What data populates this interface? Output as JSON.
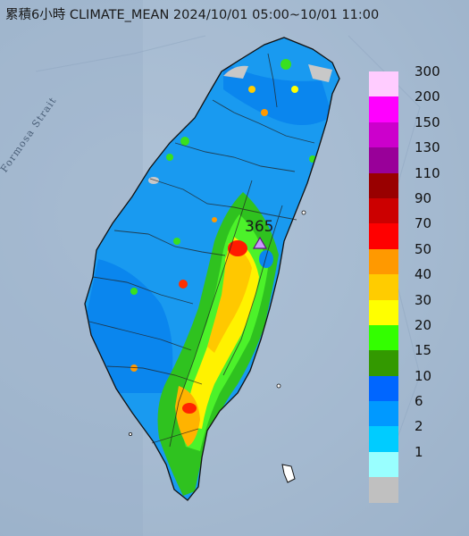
{
  "title": "累積6小時 CLIMATE_MEAN 2024/10/01 05:00~10/01 11:00",
  "strait_label": "Formosa Strait",
  "max_value": "365",
  "legend": [
    {
      "label": "300",
      "color": "#ffccff"
    },
    {
      "label": "200",
      "color": "#ff00ff"
    },
    {
      "label": "150",
      "color": "#cc00cc"
    },
    {
      "label": "130",
      "color": "#990099"
    },
    {
      "label": "110",
      "color": "#990000"
    },
    {
      "label": "90",
      "color": "#cc0000"
    },
    {
      "label": "70",
      "color": "#ff0000"
    },
    {
      "label": "50",
      "color": "#ff9900"
    },
    {
      "label": "40",
      "color": "#ffcc00"
    },
    {
      "label": "30",
      "color": "#ffff00"
    },
    {
      "label": "20",
      "color": "#33ff00"
    },
    {
      "label": "15",
      "color": "#339900"
    },
    {
      "label": "10",
      "color": "#0066ff"
    },
    {
      "label": "6",
      "color": "#0099ff"
    },
    {
      "label": "2",
      "color": "#00ccff"
    },
    {
      "label": "1",
      "color": "#99ffff"
    },
    {
      "label": "",
      "color": "#c0c0c0"
    }
  ]
}
